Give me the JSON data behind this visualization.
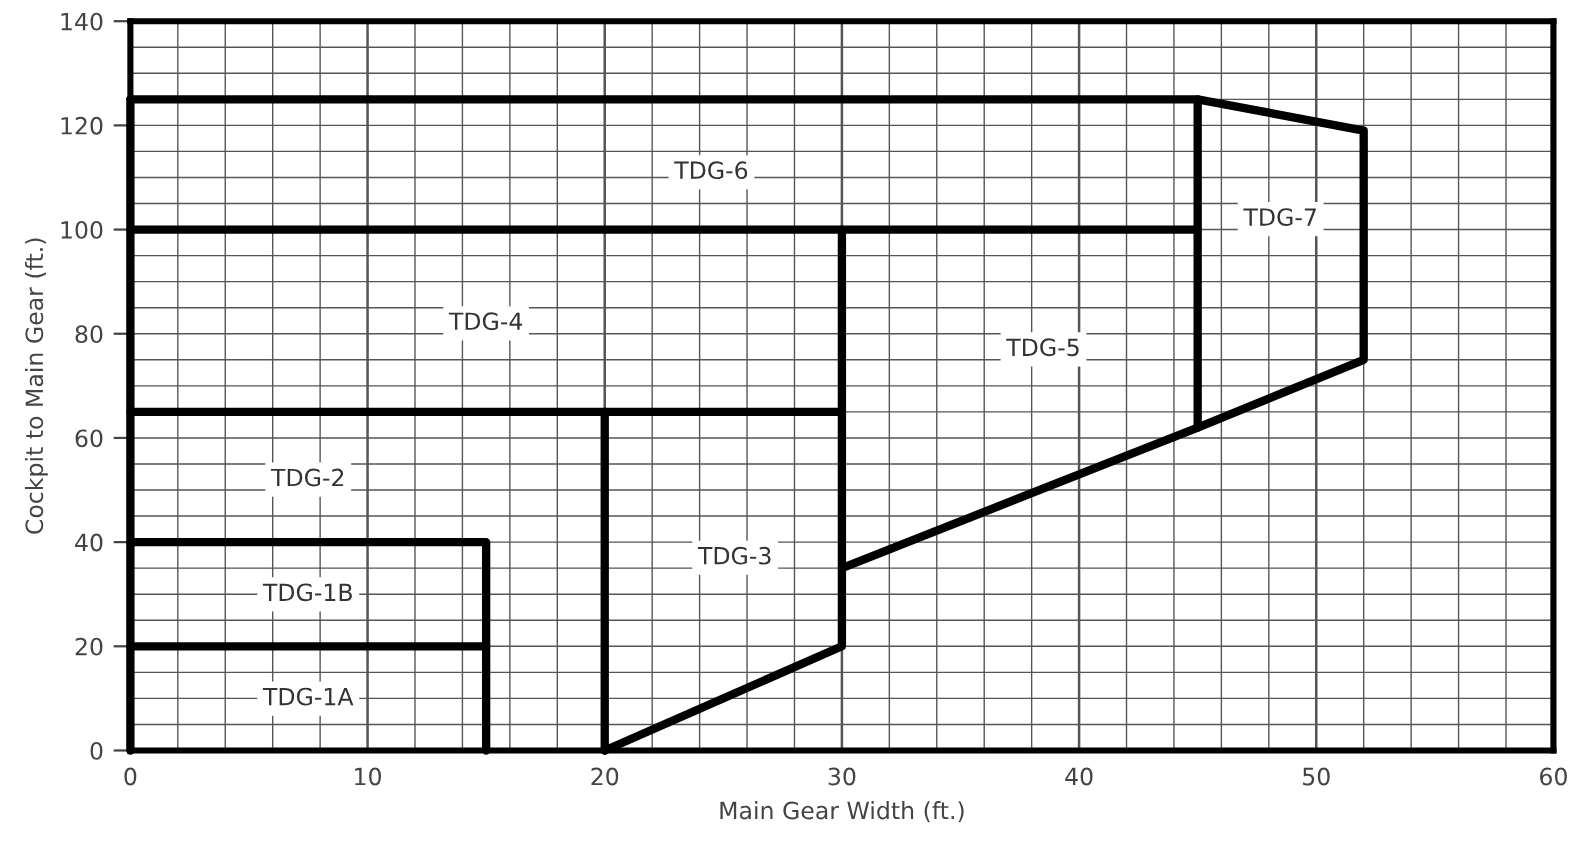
{
  "chart_data": {
    "type": "line",
    "xlabel": "Main Gear Width (ft.)",
    "ylabel": "Cockpit to Main Gear (ft.)",
    "xlim": [
      0,
      60
    ],
    "ylim": [
      0,
      140
    ],
    "xticks": [
      0,
      10,
      20,
      30,
      40,
      50,
      60
    ],
    "yticks": [
      0,
      20,
      40,
      60,
      80,
      100,
      120,
      140
    ],
    "grid": true,
    "marker": "none",
    "line_style": "solid",
    "series": [
      {
        "color": "#000000",
        "x": [
          0,
          0
        ],
        "values": [
          0,
          125
        ]
      },
      {
        "color": "#000000",
        "x": [
          0,
          15
        ],
        "values": [
          20,
          20
        ]
      },
      {
        "color": "#000000",
        "x": [
          0,
          15,
          15
        ],
        "values": [
          40,
          40,
          0
        ]
      },
      {
        "color": "#000000",
        "x": [
          0,
          30
        ],
        "values": [
          65,
          65
        ]
      },
      {
        "color": "#000000",
        "x": [
          20,
          20
        ],
        "values": [
          0,
          65
        ]
      },
      {
        "color": "#000000",
        "x": [
          20,
          30,
          30
        ],
        "values": [
          0,
          20,
          100
        ]
      },
      {
        "color": "#000000",
        "x": [
          0,
          45
        ],
        "values": [
          100,
          100
        ]
      },
      {
        "color": "#000000",
        "x": [
          30,
          45,
          52,
          52,
          45,
          0
        ],
        "values": [
          35,
          62,
          75,
          119,
          125,
          125
        ]
      },
      {
        "color": "#000000",
        "x": [
          45,
          45
        ],
        "values": [
          62,
          125
        ]
      }
    ],
    "annotations": [
      "TDG-1A",
      "TDG-1B",
      {
        "text": "TDG-2",
        "x": 7.5,
        "y": 52
      },
      {
        "text": "TDG-3",
        "x": 25.5,
        "y": 37
      },
      {
        "text": "TDG-4",
        "x": 15,
        "y": 82
      },
      {
        "text": "TDG-5",
        "x": 38.5,
        "y": 77
      },
      {
        "text": "TDG-6",
        "x": 24.5,
        "y": 111
      },
      {
        "text": "TDG-7",
        "x": 48.5,
        "y": 102
      }
    ]
  }
}
